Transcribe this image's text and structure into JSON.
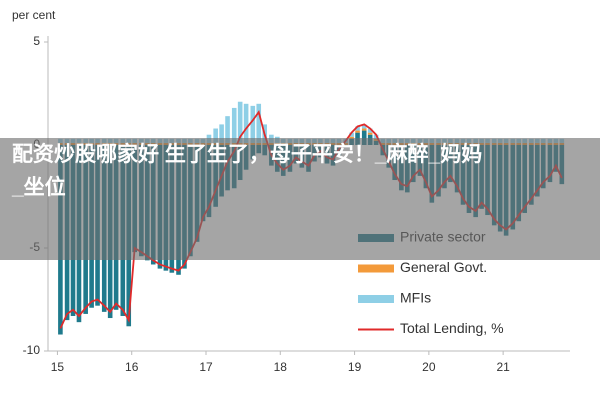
{
  "chart_data": {
    "type": "bar",
    "ylabel": "per cent",
    "x": [
      15.04,
      15.13,
      15.21,
      15.29,
      15.38,
      15.46,
      15.54,
      15.63,
      15.71,
      15.79,
      15.88,
      15.96,
      16.04,
      16.13,
      16.21,
      16.29,
      16.38,
      16.46,
      16.54,
      16.63,
      16.71,
      16.79,
      16.88,
      16.96,
      17.04,
      17.13,
      17.21,
      17.29,
      17.38,
      17.46,
      17.54,
      17.63,
      17.71,
      17.79,
      17.88,
      17.96,
      18.04,
      18.13,
      18.21,
      18.29,
      18.38,
      18.46,
      18.54,
      18.63,
      18.71,
      18.79,
      18.88,
      18.96,
      19.04,
      19.13,
      19.21,
      19.29,
      19.38,
      19.46,
      19.54,
      19.63,
      19.71,
      19.79,
      19.88,
      19.96,
      20.04,
      20.13,
      20.21,
      20.29,
      20.38,
      20.46,
      20.54,
      20.63,
      20.71,
      20.79,
      20.88,
      20.96,
      21.04,
      21.13,
      21.21,
      21.29,
      21.38,
      21.46,
      21.54,
      21.63,
      21.71,
      21.79
    ],
    "series": [
      {
        "name": "Private sector",
        "color": "#1f7a8c",
        "values": [
          -9.2,
          -8.5,
          -8.3,
          -8.6,
          -8.2,
          -7.9,
          -7.8,
          -8.1,
          -8.4,
          -8.0,
          -8.3,
          -8.8,
          -5.2,
          -5.4,
          -5.6,
          -5.8,
          -6.0,
          -6.1,
          -6.2,
          -6.3,
          -6.0,
          -5.4,
          -4.7,
          -3.7,
          -3.5,
          -3.0,
          -2.5,
          -2.2,
          -2.1,
          -1.7,
          -1.2,
          -0.7,
          -0.4,
          -0.5,
          -1.0,
          -1.3,
          -1.5,
          -1.3,
          -0.9,
          -1.1,
          -1.3,
          -0.8,
          -0.6,
          -0.9,
          -1.0,
          -0.5,
          -0.1,
          0.3,
          0.6,
          0.7,
          0.5,
          0.2,
          -0.5,
          -1.1,
          -1.7,
          -2.2,
          -2.3,
          -1.8,
          -1.5,
          -2.1,
          -2.8,
          -2.5,
          -2.1,
          -1.8,
          -2.3,
          -2.9,
          -3.3,
          -3.5,
          -3.1,
          -3.4,
          -3.9,
          -4.2,
          -4.4,
          -4.1,
          -3.7,
          -3.3,
          -2.9,
          -2.5,
          -2.1,
          -1.8,
          -1.3,
          -1.9
        ]
      },
      {
        "name": "General Govt.",
        "color": "#f39a3a",
        "values": [
          0.1,
          0.1,
          0.1,
          0.1,
          0.1,
          0.1,
          0.1,
          0.1,
          0.1,
          0.1,
          0.1,
          0.1,
          0.1,
          0.1,
          0.1,
          0.1,
          0.1,
          0.1,
          0.1,
          0.1,
          0.1,
          0.1,
          0.1,
          0.1,
          0.1,
          0.1,
          0.1,
          0.1,
          0.1,
          0.1,
          0.1,
          0.1,
          0.1,
          0.1,
          0.1,
          0.1,
          0.1,
          0.1,
          0.1,
          0.1,
          0.1,
          0.1,
          0.1,
          0.1,
          0.1,
          0.1,
          0.1,
          0.1,
          0.1,
          0.1,
          0.1,
          0.1,
          0.1,
          0.1,
          0.1,
          0.1,
          0.1,
          0.1,
          0.1,
          0.1,
          0.1,
          0.1,
          0.1,
          0.1,
          0.1,
          0.1,
          0.1,
          0.1,
          0.1,
          0.1,
          0.1,
          0.1,
          0.1,
          0.1,
          0.1,
          0.1,
          0.1,
          0.1,
          0.1,
          0.1,
          0.1,
          0.1
        ]
      },
      {
        "name": "MFIs",
        "color": "#8ecfe6",
        "values": [
          0.2,
          0.2,
          0.2,
          0.2,
          0.2,
          0.2,
          0.2,
          0.2,
          0.2,
          0.2,
          0.2,
          0.2,
          0.2,
          0.2,
          0.2,
          0.2,
          0.2,
          0.2,
          0.2,
          0.2,
          0.2,
          0.2,
          0.2,
          0.2,
          0.4,
          0.7,
          0.9,
          1.3,
          1.7,
          2.0,
          1.9,
          1.8,
          1.9,
          0.9,
          0.4,
          0.3,
          0.2,
          0.2,
          0.2,
          0.2,
          0.2,
          0.2,
          0.2,
          0.2,
          0.2,
          0.2,
          0.2,
          0.2,
          0.2,
          0.2,
          0.2,
          0.2,
          0.2,
          0.2,
          0.2,
          0.2,
          0.2,
          0.2,
          0.2,
          0.2,
          0.2,
          0.2,
          0.2,
          0.2,
          0.2,
          0.2,
          0.2,
          0.2,
          0.2,
          0.2,
          0.2,
          0.2,
          0.2,
          0.2,
          0.2,
          0.2,
          0.2,
          0.2,
          0.2,
          0.2,
          0.2,
          0.2
        ]
      },
      {
        "name": "Total Lending, %",
        "color": "#e02a2a",
        "type": "line",
        "values": [
          -8.9,
          -8.2,
          -8.0,
          -8.3,
          -7.9,
          -7.6,
          -7.5,
          -7.8,
          -8.1,
          -7.7,
          -8.0,
          -8.5,
          -5.0,
          -5.2,
          -5.4,
          -5.6,
          -5.8,
          -5.9,
          -6.0,
          -6.1,
          -5.8,
          -5.2,
          -4.5,
          -3.5,
          -3.0,
          -2.2,
          -1.5,
          -0.8,
          -0.3,
          0.4,
          0.8,
          1.2,
          1.6,
          0.5,
          -0.5,
          -0.9,
          -1.2,
          -1.0,
          -0.6,
          -0.8,
          -1.0,
          -0.5,
          -0.3,
          -0.6,
          -0.7,
          -0.2,
          0.2,
          0.6,
          0.9,
          1.0,
          0.8,
          0.5,
          -0.2,
          -0.8,
          -1.4,
          -1.9,
          -2.0,
          -1.5,
          -1.2,
          -1.8,
          -2.5,
          -2.2,
          -1.8,
          -1.5,
          -2.0,
          -2.6,
          -3.0,
          -3.2,
          -2.8,
          -3.1,
          -3.6,
          -3.9,
          -4.1,
          -3.8,
          -3.4,
          -3.0,
          -2.6,
          -2.2,
          -1.8,
          -1.5,
          -1.0,
          -1.6
        ]
      }
    ],
    "xlim": [
      14.9,
      21.9
    ],
    "xticks": [
      15,
      16,
      17,
      18,
      19,
      20,
      21
    ],
    "ylim": [
      -10,
      5
    ],
    "yticks": [
      5,
      0,
      -5,
      -10
    ],
    "grid": false
  },
  "overlay": {
    "lines": [
      "配资炒股哪家好 生了生了，母子平安！_麻醉_妈妈",
      "_坐位"
    ]
  }
}
